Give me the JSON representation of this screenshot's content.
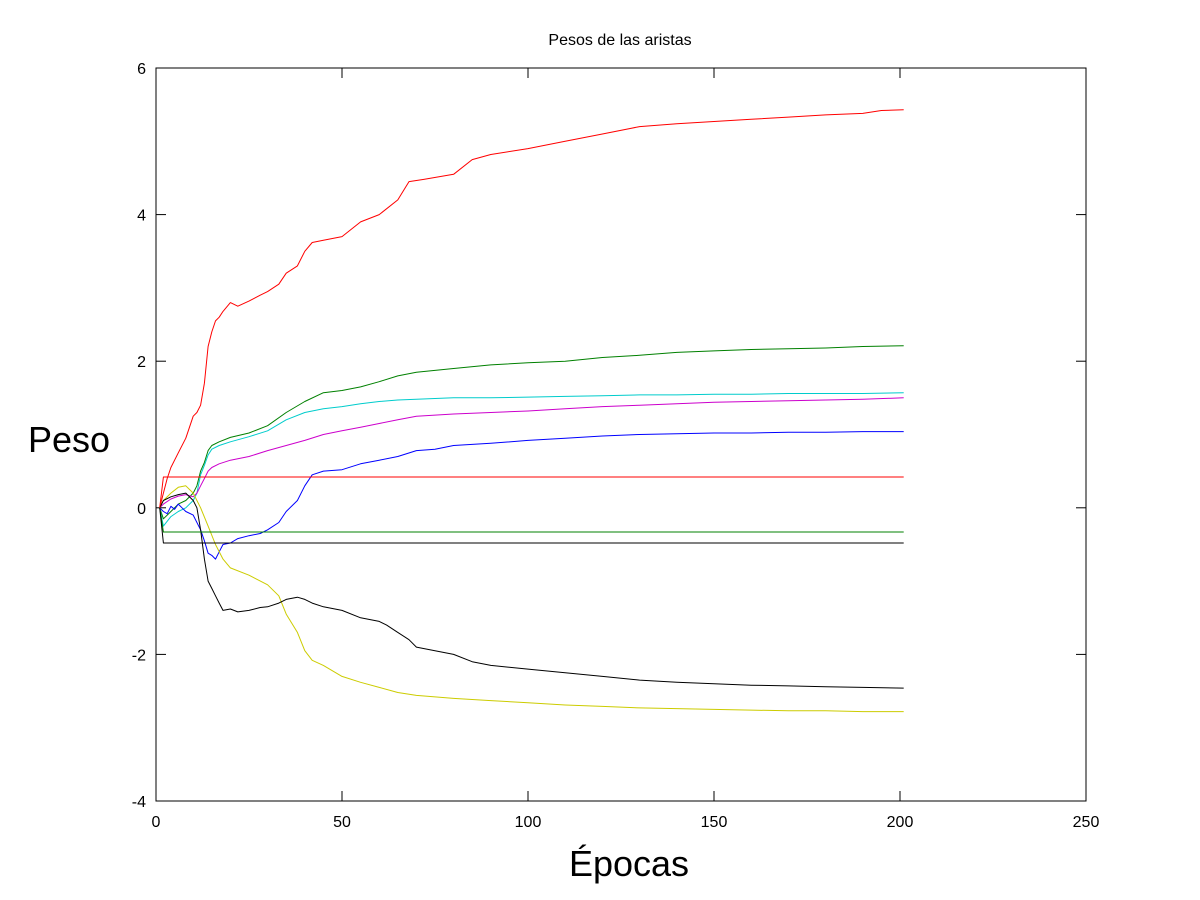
{
  "chart_data": {
    "type": "line",
    "title": "Pesos de las aristas",
    "xlabel": "Épocas",
    "ylabel": "Peso",
    "xlim": [
      0,
      250
    ],
    "ylim": [
      -4,
      6
    ],
    "xticks": [
      0,
      50,
      100,
      150,
      200,
      250
    ],
    "yticks": [
      -4,
      -2,
      0,
      2,
      4,
      6
    ],
    "grid": false,
    "legend": "none",
    "series": [
      {
        "color": "#ff0000",
        "x": [
          1,
          2,
          3,
          4,
          6,
          8,
          9,
          10,
          11,
          12,
          13,
          14,
          15,
          16,
          17,
          18,
          20,
          22,
          25,
          28,
          30,
          33,
          35,
          38,
          40,
          42,
          45,
          50,
          55,
          60,
          65,
          68,
          72,
          80,
          85,
          90,
          100,
          110,
          120,
          130,
          140,
          150,
          160,
          170,
          180,
          190,
          195,
          201
        ],
        "y": [
          0.0,
          0.2,
          0.4,
          0.55,
          0.75,
          0.95,
          1.1,
          1.25,
          1.3,
          1.4,
          1.7,
          2.2,
          2.4,
          2.55,
          2.6,
          2.68,
          2.8,
          2.75,
          2.82,
          2.9,
          2.95,
          3.05,
          3.2,
          3.3,
          3.5,
          3.62,
          3.65,
          3.7,
          3.9,
          4.0,
          4.2,
          4.45,
          4.48,
          4.55,
          4.75,
          4.82,
          4.9,
          5.0,
          5.1,
          5.2,
          5.24,
          5.27,
          5.3,
          5.33,
          5.36,
          5.38,
          5.42,
          5.43
        ]
      },
      {
        "color": "#008000",
        "x": [
          1,
          2,
          4,
          6,
          8,
          10,
          11,
          12,
          13,
          14,
          15,
          17,
          20,
          25,
          30,
          35,
          40,
          45,
          50,
          55,
          60,
          65,
          70,
          80,
          90,
          100,
          110,
          120,
          130,
          140,
          150,
          160,
          170,
          180,
          190,
          201
        ],
        "y": [
          0.0,
          -0.15,
          -0.05,
          0.05,
          0.1,
          0.2,
          0.3,
          0.5,
          0.62,
          0.78,
          0.85,
          0.9,
          0.96,
          1.02,
          1.12,
          1.3,
          1.45,
          1.57,
          1.6,
          1.65,
          1.72,
          1.8,
          1.85,
          1.9,
          1.95,
          1.98,
          2.0,
          2.05,
          2.08,
          2.12,
          2.14,
          2.16,
          2.17,
          2.18,
          2.2,
          2.21
        ]
      },
      {
        "color": "#00cccc",
        "x": [
          1,
          2,
          4,
          6,
          8,
          10,
          11,
          12,
          13,
          14,
          15,
          17,
          20,
          25,
          30,
          35,
          40,
          45,
          50,
          55,
          60,
          65,
          70,
          80,
          90,
          100,
          110,
          120,
          130,
          140,
          150,
          160,
          170,
          180,
          190,
          201
        ],
        "y": [
          0.0,
          -0.25,
          -0.12,
          -0.05,
          0.0,
          0.1,
          0.2,
          0.45,
          0.58,
          0.72,
          0.8,
          0.85,
          0.9,
          0.97,
          1.05,
          1.2,
          1.3,
          1.35,
          1.38,
          1.42,
          1.45,
          1.47,
          1.48,
          1.5,
          1.5,
          1.51,
          1.52,
          1.53,
          1.54,
          1.54,
          1.55,
          1.55,
          1.56,
          1.56,
          1.56,
          1.57
        ]
      },
      {
        "color": "#cc00cc",
        "x": [
          1,
          2,
          4,
          6,
          8,
          10,
          11,
          12,
          13,
          14,
          15,
          17,
          20,
          25,
          30,
          35,
          40,
          45,
          50,
          55,
          60,
          65,
          70,
          80,
          90,
          100,
          110,
          120,
          130,
          140,
          150,
          160,
          170,
          180,
          190,
          201
        ],
        "y": [
          0.0,
          0.05,
          0.12,
          0.16,
          0.18,
          0.15,
          0.2,
          0.3,
          0.4,
          0.5,
          0.55,
          0.6,
          0.65,
          0.7,
          0.78,
          0.85,
          0.92,
          1.0,
          1.05,
          1.1,
          1.15,
          1.2,
          1.25,
          1.28,
          1.3,
          1.32,
          1.35,
          1.38,
          1.4,
          1.42,
          1.44,
          1.45,
          1.46,
          1.47,
          1.48,
          1.5
        ]
      },
      {
        "color": "#0000ff",
        "x": [
          1,
          2,
          3,
          4,
          5,
          6,
          7,
          8,
          10,
          12,
          13,
          14,
          15,
          16,
          17,
          18,
          20,
          22,
          25,
          28,
          30,
          33,
          35,
          38,
          40,
          42,
          45,
          50,
          55,
          60,
          65,
          70,
          75,
          80,
          90,
          100,
          110,
          120,
          130,
          140,
          150,
          160,
          170,
          180,
          190,
          201
        ],
        "y": [
          0.0,
          -0.05,
          -0.08,
          0.02,
          -0.02,
          0.05,
          0.0,
          -0.05,
          -0.1,
          -0.3,
          -0.45,
          -0.62,
          -0.65,
          -0.7,
          -0.6,
          -0.5,
          -0.48,
          -0.42,
          -0.38,
          -0.35,
          -0.3,
          -0.2,
          -0.05,
          0.1,
          0.3,
          0.45,
          0.5,
          0.52,
          0.6,
          0.65,
          0.7,
          0.78,
          0.8,
          0.85,
          0.88,
          0.92,
          0.95,
          0.98,
          1.0,
          1.01,
          1.02,
          1.02,
          1.03,
          1.03,
          1.04,
          1.04
        ]
      },
      {
        "color": "#cccc00",
        "x": [
          1,
          2,
          4,
          6,
          8,
          10,
          12,
          14,
          16,
          18,
          20,
          25,
          30,
          33,
          35,
          38,
          40,
          42,
          45,
          50,
          55,
          60,
          65,
          70,
          80,
          90,
          100,
          110,
          120,
          130,
          140,
          150,
          160,
          170,
          180,
          190,
          201
        ],
        "y": [
          0.0,
          0.1,
          0.2,
          0.28,
          0.3,
          0.2,
          0.0,
          -0.25,
          -0.5,
          -0.7,
          -0.82,
          -0.92,
          -1.05,
          -1.2,
          -1.45,
          -1.7,
          -1.95,
          -2.08,
          -2.15,
          -2.3,
          -2.38,
          -2.45,
          -2.52,
          -2.56,
          -2.6,
          -2.63,
          -2.66,
          -2.69,
          -2.71,
          -2.73,
          -2.74,
          -2.75,
          -2.76,
          -2.77,
          -2.77,
          -2.78,
          -2.78
        ]
      },
      {
        "color": "#000000",
        "x": [
          1,
          2,
          4,
          6,
          8,
          10,
          11,
          12,
          13,
          14,
          15,
          16,
          17,
          18,
          20,
          22,
          25,
          28,
          30,
          33,
          35,
          38,
          40,
          42,
          45,
          50,
          55,
          60,
          62,
          65,
          68,
          70,
          75,
          80,
          85,
          90,
          100,
          110,
          120,
          130,
          140,
          150,
          160,
          170,
          180,
          190,
          201
        ],
        "y": [
          0.0,
          0.1,
          0.15,
          0.18,
          0.2,
          0.1,
          0.0,
          -0.3,
          -0.7,
          -1.0,
          -1.1,
          -1.2,
          -1.3,
          -1.4,
          -1.38,
          -1.42,
          -1.4,
          -1.36,
          -1.35,
          -1.3,
          -1.25,
          -1.22,
          -1.25,
          -1.3,
          -1.35,
          -1.4,
          -1.5,
          -1.55,
          -1.6,
          -1.7,
          -1.8,
          -1.9,
          -1.95,
          -2.0,
          -2.1,
          -2.15,
          -2.2,
          -2.25,
          -2.3,
          -2.35,
          -2.38,
          -2.4,
          -2.42,
          -2.43,
          -2.44,
          -2.45,
          -2.46
        ]
      },
      {
        "color": "#ff0000",
        "x": [
          1,
          2,
          201
        ],
        "y": [
          0.0,
          0.42,
          0.42
        ]
      },
      {
        "color": "#008000",
        "x": [
          1,
          2,
          201
        ],
        "y": [
          0.0,
          -0.33,
          -0.33
        ]
      },
      {
        "color": "#000000",
        "x": [
          1,
          2,
          201
        ],
        "y": [
          0.0,
          -0.48,
          -0.48
        ]
      }
    ]
  }
}
